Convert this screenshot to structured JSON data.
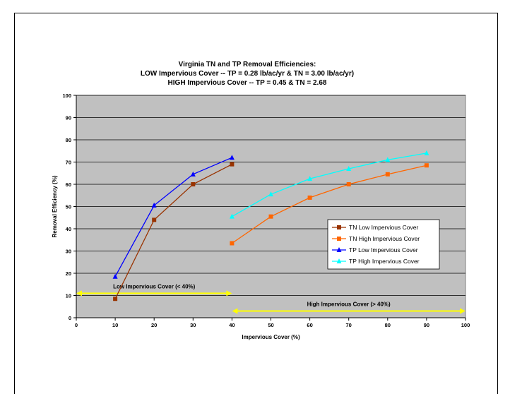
{
  "chart_data": {
    "type": "line",
    "title_lines": [
      "Virginia TN and TP Removal Efficiencies:",
      "LOW Impervious Cover -- TP = 0.28 lb/ac/yr & TN = 3.00 lb/ac/yr)",
      "HIGH Impervious Cover -- TP = 0.45 & TN = 2.68"
    ],
    "xlabel": "Impervious Cover (%)",
    "ylabel": "Removal Efficiency (%)",
    "xlim": [
      0,
      100
    ],
    "ylim": [
      0,
      100
    ],
    "x_ticks": [
      0,
      10,
      20,
      30,
      40,
      50,
      60,
      70,
      80,
      90,
      100
    ],
    "y_ticks": [
      0,
      10,
      20,
      30,
      40,
      50,
      60,
      70,
      80,
      90,
      100
    ],
    "grid": "horizontal",
    "plot_background": "#c0c0c0",
    "legend_position": "right",
    "series": [
      {
        "name": "TN Low Impervious Cover",
        "color": "#993300",
        "marker": "square",
        "x": [
          10,
          20,
          30,
          40
        ],
        "y": [
          8.5,
          44,
          60,
          69
        ]
      },
      {
        "name": "TN High Impervious Cover",
        "color": "#ff6600",
        "marker": "square",
        "x": [
          40,
          50,
          60,
          70,
          80,
          90
        ],
        "y": [
          33.5,
          45.5,
          54,
          60,
          64.5,
          68.5
        ]
      },
      {
        "name": "TP Low Impervious Cover",
        "color": "#0000ff",
        "marker": "triangle",
        "x": [
          10,
          20,
          30,
          40
        ],
        "y": [
          18.5,
          50.5,
          64.5,
          72
        ]
      },
      {
        "name": "TP High Impervious Cover",
        "color": "#00ffff",
        "marker": "triangle",
        "x": [
          40,
          50,
          60,
          70,
          80,
          90
        ],
        "y": [
          45.5,
          55.5,
          62.5,
          67,
          71,
          74
        ]
      }
    ],
    "annotations": [
      {
        "text": "Low Impervious Cover (< 40%)",
        "x_start": 0,
        "x_end": 40,
        "y": 11,
        "arrow_color": "#ffff00"
      },
      {
        "text": "High Impervious Cover (> 40%)",
        "x_start": 40,
        "x_end": 100,
        "y": 3,
        "arrow_color": "#ffff00"
      }
    ]
  }
}
